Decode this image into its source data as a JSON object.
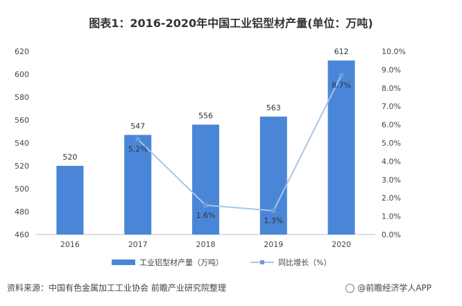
{
  "chart_data": {
    "type": "bar",
    "title": "图表1：2016-2020年中国工业铝型材产量(单位：万吨)",
    "categories": [
      "2016",
      "2017",
      "2018",
      "2019",
      "2020"
    ],
    "series": [
      {
        "name": "工业铝型材产量（万吨）",
        "type": "bar",
        "values": [
          520,
          547,
          556,
          563,
          612
        ],
        "labels": [
          "520",
          "547",
          "556",
          "563",
          "612"
        ],
        "axis": "left"
      },
      {
        "name": "同比增长（%）",
        "type": "line",
        "values": [
          null,
          5.2,
          1.6,
          1.3,
          8.7
        ],
        "labels": [
          "",
          "5.2%",
          "1.6%",
          "1.3%",
          "8.7%"
        ],
        "axis": "right"
      }
    ],
    "y_left": {
      "min": 460,
      "max": 620,
      "step": 20,
      "ticks": [
        "460",
        "480",
        "500",
        "520",
        "540",
        "560",
        "580",
        "600",
        "620"
      ]
    },
    "y_right": {
      "min": 0,
      "max": 10,
      "step": 1,
      "ticks": [
        "0.0%",
        "1.0%",
        "2.0%",
        "3.0%",
        "4.0%",
        "5.0%",
        "6.0%",
        "7.0%",
        "8.0%",
        "9.0%",
        "10.0%"
      ]
    },
    "grid": false,
    "legend": "bottom",
    "colors": {
      "bar": "#4a86d8",
      "line": "#a9c4e8",
      "marker": "#6f9fd8"
    }
  },
  "footer": {
    "source": "资料来源：中国有色金属加工工业协会 前瞻产业研究院整理",
    "brand": "@前瞻经济学人APP"
  }
}
